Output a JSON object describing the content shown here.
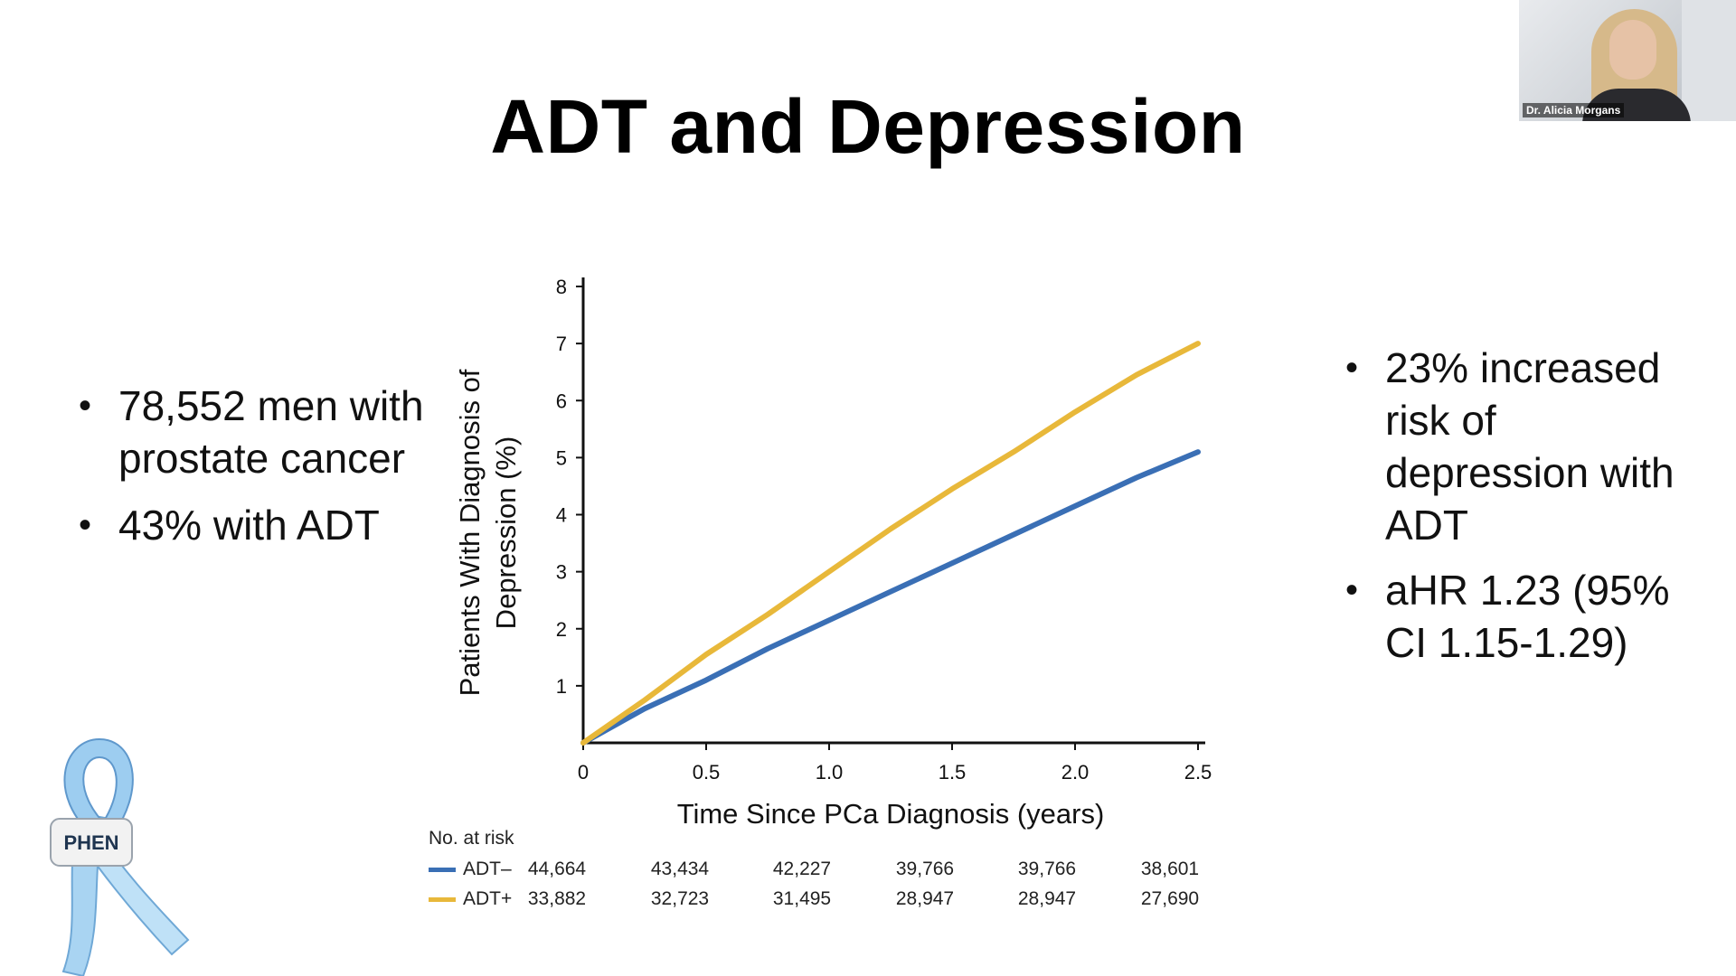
{
  "slide": {
    "title": "ADT and Depression"
  },
  "left_bullets": [
    "78,552 men with prostate cancer",
    "43% with ADT"
  ],
  "right_bullets": [
    "23% increased risk of depression with ADT",
    "aHR 1.23 (95% CI 1.15-1.29)"
  ],
  "webcam": {
    "name": "Dr. Alicia Morgans"
  },
  "logo": {
    "label": "PHEN"
  },
  "chart_data": {
    "type": "line",
    "xlabel": "Time Since PCa Diagnosis (years)",
    "ylabel": "Patients With Diagnosis of Depression (%)",
    "xlim": [
      0,
      2.5
    ],
    "ylim": [
      0,
      8
    ],
    "x_ticks": [
      "0",
      "0.5",
      "1.0",
      "1.5",
      "2.0",
      "2.5"
    ],
    "y_ticks": [
      "1",
      "2",
      "3",
      "4",
      "5",
      "6",
      "7",
      "8"
    ],
    "grid": false,
    "series": [
      {
        "name": "ADT–",
        "color": "#3a6fb5",
        "x": [
          0,
          0.25,
          0.5,
          0.75,
          1.0,
          1.25,
          1.5,
          1.75,
          2.0,
          2.25,
          2.5
        ],
        "y": [
          0,
          0.6,
          1.1,
          1.65,
          2.15,
          2.65,
          3.15,
          3.65,
          4.15,
          4.65,
          5.1
        ]
      },
      {
        "name": "ADT+",
        "color": "#e8b83a",
        "x": [
          0,
          0.25,
          0.5,
          0.75,
          1.0,
          1.25,
          1.5,
          1.75,
          2.0,
          2.25,
          2.5
        ],
        "y": [
          0,
          0.75,
          1.55,
          2.25,
          3.0,
          3.75,
          4.45,
          5.1,
          5.8,
          6.45,
          7.0
        ]
      }
    ],
    "risk_table": {
      "header": "No. at risk",
      "rows": [
        {
          "label": "ADT–",
          "color": "#3a6fb5",
          "values": [
            "44,664",
            "43,434",
            "42,227",
            "39,766",
            "39,766",
            "38,601"
          ]
        },
        {
          "label": "ADT+",
          "color": "#e8b83a",
          "values": [
            "33,882",
            "32,723",
            "31,495",
            "28,947",
            "28,947",
            "27,690"
          ]
        }
      ]
    }
  }
}
